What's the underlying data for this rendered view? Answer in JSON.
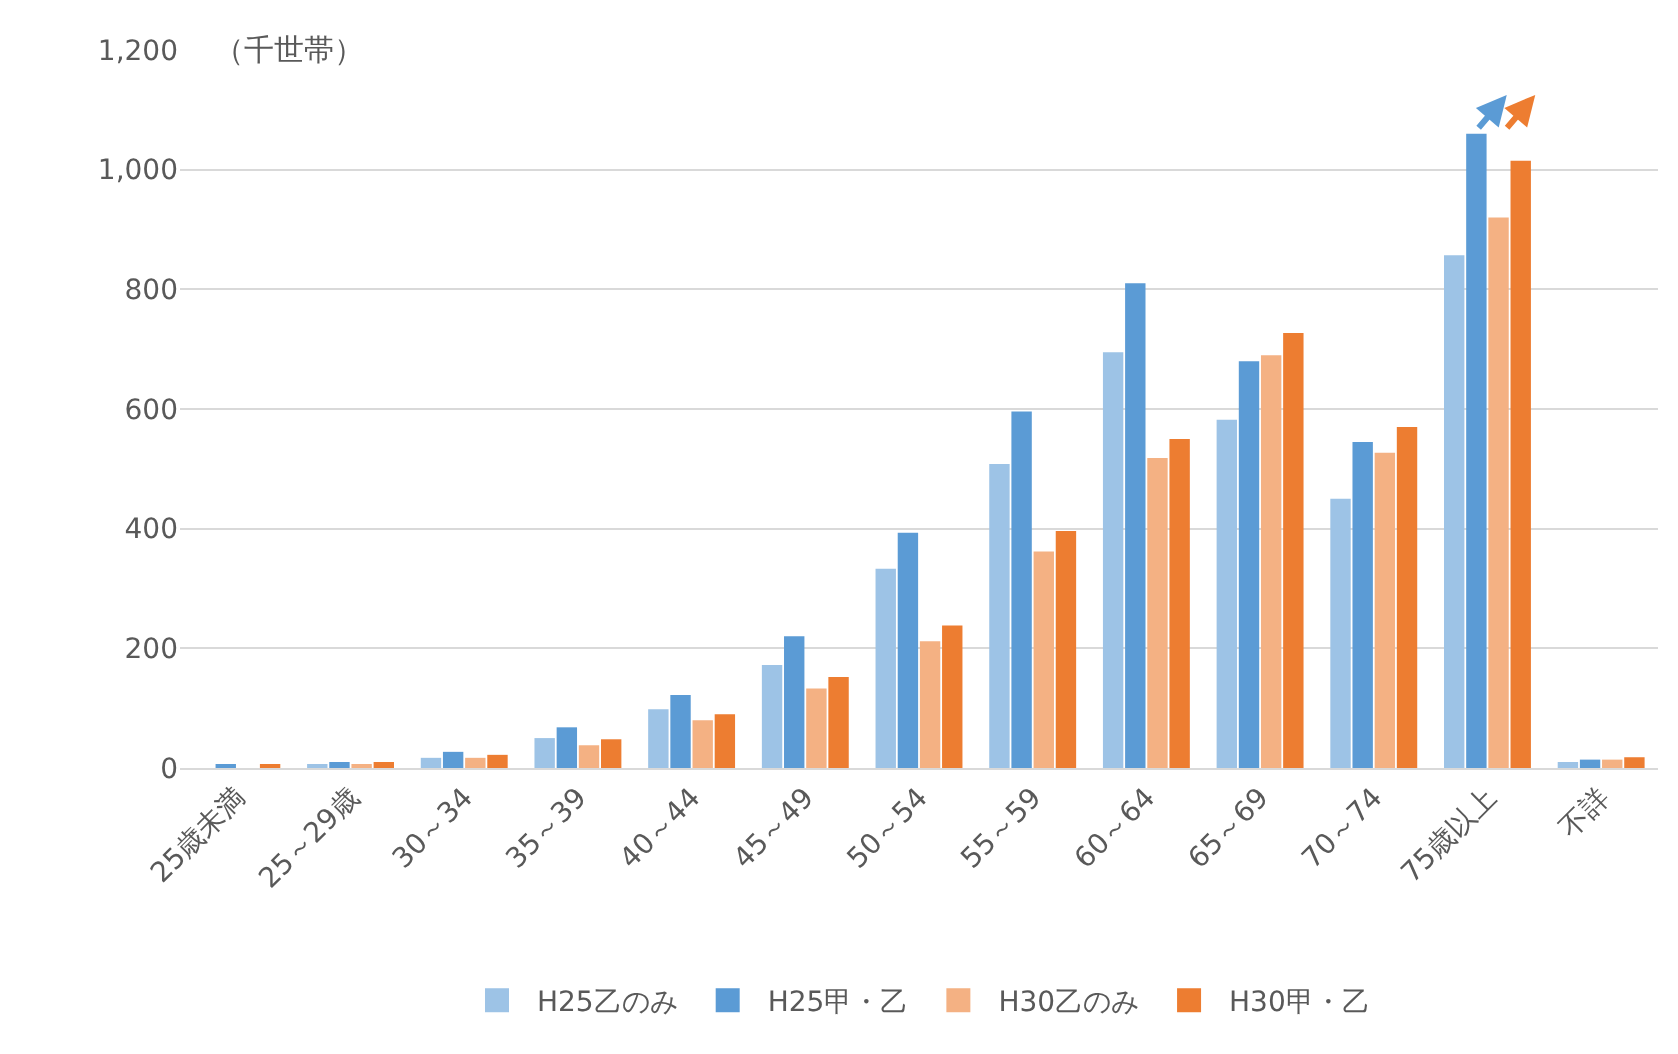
{
  "chart_data": {
    "type": "bar",
    "ylabel": "（千世帯）",
    "categories": [
      "25歳未満",
      "25～29歳",
      "30～34",
      "35～39",
      "40～44",
      "45～49",
      "50～54",
      "55～59",
      "60～64",
      "65～69",
      "70～74",
      "75歳以上",
      "不詳"
    ],
    "series": [
      {
        "name": "H25乙のみ",
        "color": "#9dc3e6",
        "values": [
          null,
          5,
          17,
          50,
          98,
          172,
          333,
          508,
          695,
          582,
          450,
          857,
          10
        ]
      },
      {
        "name": "H25甲・乙",
        "color": "#5b9bd5",
        "values": [
          6,
          10,
          27,
          68,
          122,
          220,
          393,
          596,
          810,
          680,
          545,
          1060,
          14
        ]
      },
      {
        "name": "H30乙のみ",
        "color": "#f4b183",
        "values": [
          null,
          5,
          17,
          38,
          80,
          133,
          212,
          362,
          518,
          690,
          527,
          920,
          14
        ]
      },
      {
        "name": "H30甲・乙",
        "color": "#ed7d31",
        "values": [
          6,
          10,
          22,
          48,
          90,
          152,
          238,
          396,
          550,
          727,
          570,
          1015,
          18
        ]
      }
    ],
    "ylim": [
      0,
      1200
    ],
    "yticks": [
      {
        "value": 0,
        "label": "0"
      },
      {
        "value": 200,
        "label": "200"
      },
      {
        "value": 400,
        "label": "400"
      },
      {
        "value": 600,
        "label": "600"
      },
      {
        "value": 800,
        "label": "800"
      },
      {
        "value": 1000,
        "label": "1,000"
      },
      {
        "value": 1200,
        "label": "1,200"
      }
    ],
    "grid": "y",
    "legend": "bottom"
  }
}
